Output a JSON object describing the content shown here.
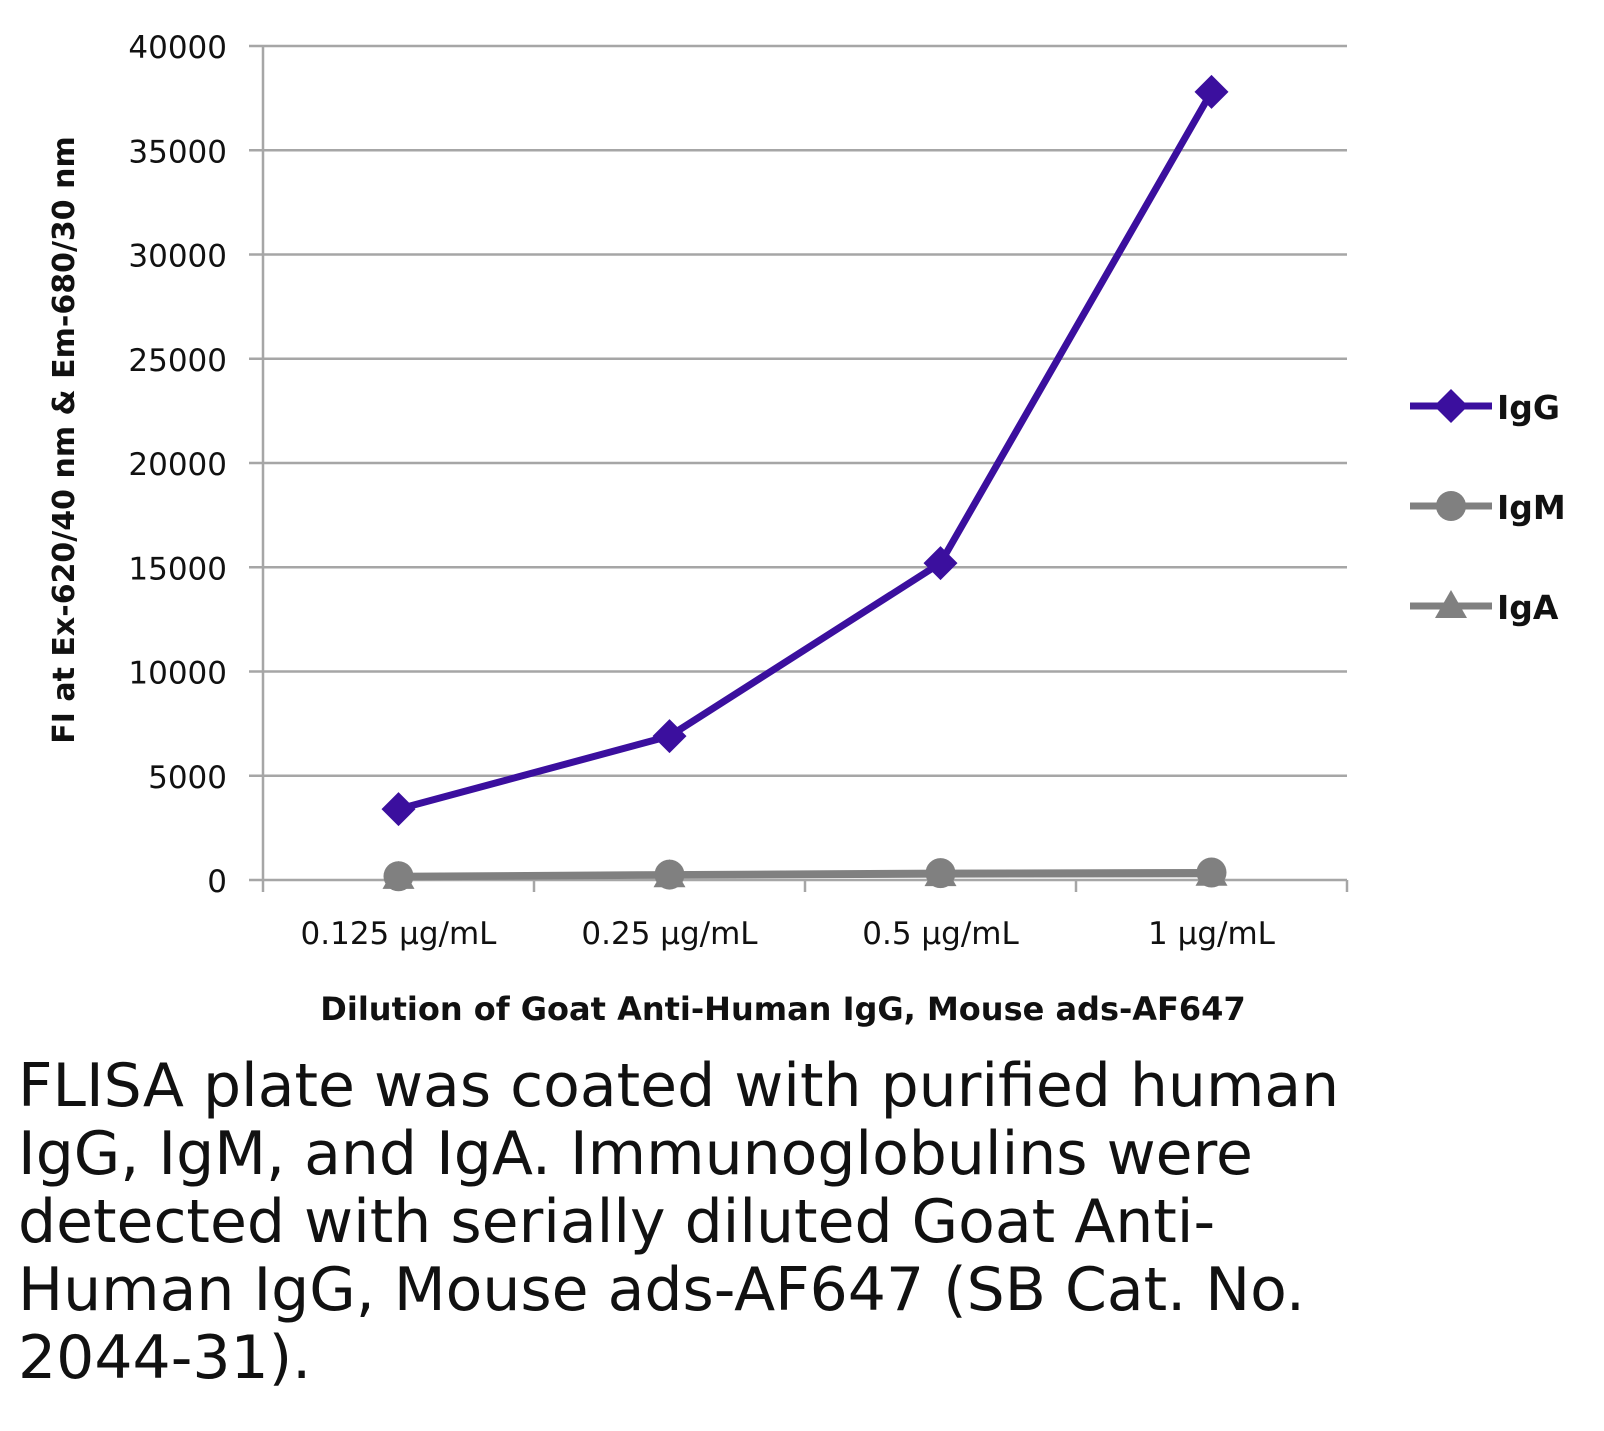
{
  "chart_data": {
    "type": "line",
    "title": "",
    "xlabel": "Dilution of Goat Anti-Human IgG, Mouse ads-AF647",
    "ylabel": "FI at Ex-620/40 nm & Em-680/30 nm",
    "categories": [
      "0.125 µg/mL",
      "0.25 µg/mL",
      "0.5 µg/mL",
      "1 µg/mL"
    ],
    "ylim": [
      0,
      40000
    ],
    "yticks": [
      "0",
      "5000",
      "10000",
      "15000",
      "20000",
      "25000",
      "30000",
      "35000",
      "40000"
    ],
    "grid": true,
    "legend_position": "right",
    "series": [
      {
        "name": "IgG",
        "values": [
          3400,
          6900,
          15200,
          37800
        ],
        "color": "#3b0f9e",
        "marker": "diamond"
      },
      {
        "name": "IgM",
        "values": [
          180,
          260,
          330,
          360
        ],
        "color": "#808080",
        "marker": "circle"
      },
      {
        "name": "IgA",
        "values": [
          150,
          230,
          280,
          300
        ],
        "color": "#808080",
        "marker": "triangle"
      }
    ]
  },
  "caption": {
    "lines": [
      "FLISA plate was coated with purified human",
      "IgG, IgM, and IgA.  Immunoglobulins were",
      "detected with serially diluted Goat Anti-",
      "Human IgG, Mouse ads-AF647 (SB Cat. No.",
      "2044-31)."
    ]
  }
}
